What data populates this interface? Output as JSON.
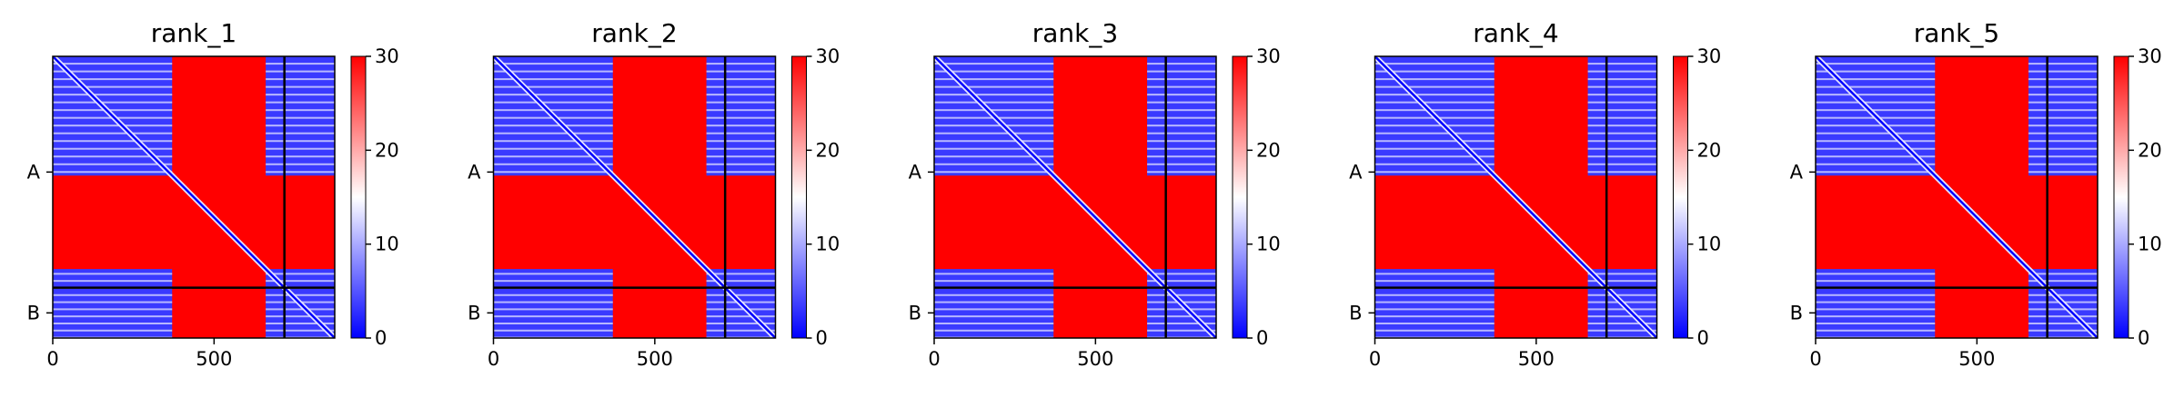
{
  "chart_data": [
    {
      "type": "heatmap",
      "title": "rank_1",
      "x_ticks": [
        0,
        500
      ],
      "y_ticks": [
        "A",
        "B"
      ],
      "chain_boundary": 718,
      "xlim": [
        0,
        874
      ],
      "ylim": [
        874,
        0
      ],
      "colorbar": {
        "min": 0,
        "max": 30,
        "ticks": [
          0,
          10,
          20,
          30
        ]
      },
      "colormap": [
        "#0000ff",
        "#ffffff",
        "#ff0000"
      ]
    },
    {
      "type": "heatmap",
      "title": "rank_2",
      "x_ticks": [
        0,
        500
      ],
      "y_ticks": [
        "A",
        "B"
      ],
      "chain_boundary": 718,
      "xlim": [
        0,
        874
      ],
      "ylim": [
        874,
        0
      ],
      "colorbar": {
        "min": 0,
        "max": 30,
        "ticks": [
          0,
          10,
          20,
          30
        ]
      },
      "colormap": [
        "#0000ff",
        "#ffffff",
        "#ff0000"
      ]
    },
    {
      "type": "heatmap",
      "title": "rank_3",
      "x_ticks": [
        0,
        500
      ],
      "y_ticks": [
        "A",
        "B"
      ],
      "chain_boundary": 718,
      "xlim": [
        0,
        874
      ],
      "ylim": [
        874,
        0
      ],
      "colorbar": {
        "min": 0,
        "max": 30,
        "ticks": [
          0,
          10,
          20,
          30
        ]
      },
      "colormap": [
        "#0000ff",
        "#ffffff",
        "#ff0000"
      ]
    },
    {
      "type": "heatmap",
      "title": "rank_4",
      "x_ticks": [
        0,
        500
      ],
      "y_ticks": [
        "A",
        "B"
      ],
      "chain_boundary": 718,
      "xlim": [
        0,
        874
      ],
      "ylim": [
        874,
        0
      ],
      "colorbar": {
        "min": 0,
        "max": 30,
        "ticks": [
          0,
          10,
          20,
          30
        ]
      },
      "colormap": [
        "#0000ff",
        "#ffffff",
        "#ff0000"
      ]
    },
    {
      "type": "heatmap",
      "title": "rank_5",
      "x_ticks": [
        0,
        500
      ],
      "y_ticks": [
        "A",
        "B"
      ],
      "chain_boundary": 718,
      "xlim": [
        0,
        874
      ],
      "ylim": [
        874,
        0
      ],
      "colorbar": {
        "min": 0,
        "max": 30,
        "ticks": [
          0,
          10,
          20,
          30
        ]
      },
      "colormap": [
        "#0000ff",
        "#ffffff",
        "#ff0000"
      ]
    }
  ]
}
